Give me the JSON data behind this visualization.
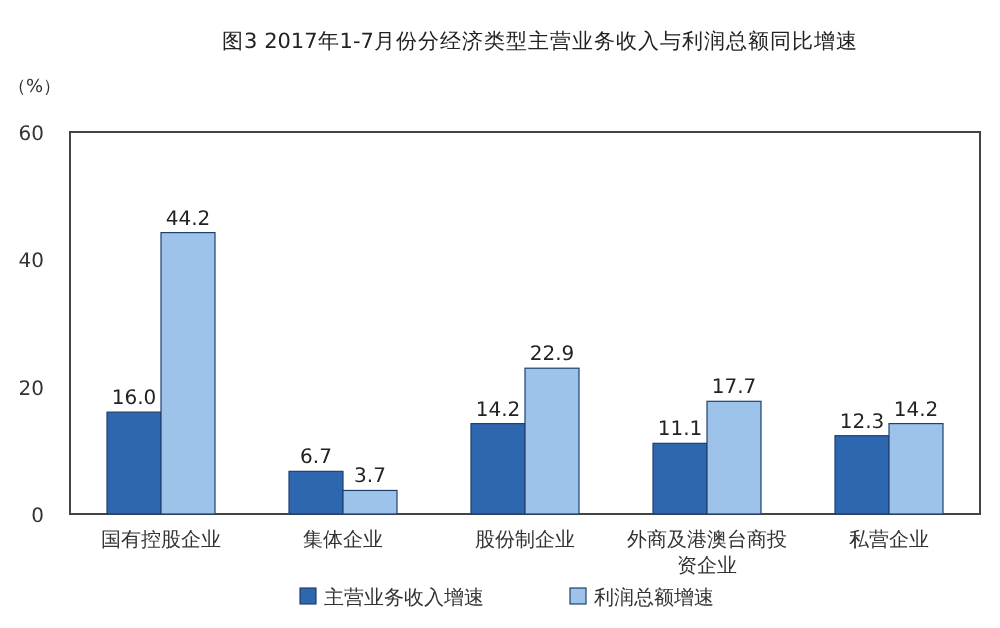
{
  "chart_data": {
    "type": "bar",
    "title": "图3 2017年1-7月份分经济类型主营业务收入与利润总额同比增速",
    "ylabel": "（%）",
    "categories": [
      "国有控股企业",
      "集体企业",
      "股份制企业",
      "外商及港澳台商投资企业",
      "私营企业"
    ],
    "series": [
      {
        "name": "主营业务收入增速",
        "color": "#2d67b0",
        "values": [
          16.0,
          6.7,
          14.2,
          11.1,
          12.3
        ],
        "value_labels": [
          "16.0",
          "6.7",
          "14.2",
          "11.1",
          "12.3"
        ]
      },
      {
        "name": "利润总额增速",
        "color": "#9dc3ea",
        "values": [
          44.2,
          3.7,
          22.9,
          17.7,
          14.2
        ],
        "value_labels": [
          "44.2",
          "3.7",
          "22.9",
          "17.7",
          "14.2"
        ]
      }
    ],
    "ylim": [
      0,
      60
    ],
    "yticks": [
      0,
      20,
      40,
      60
    ],
    "legend": "bottom",
    "grid": false
  }
}
